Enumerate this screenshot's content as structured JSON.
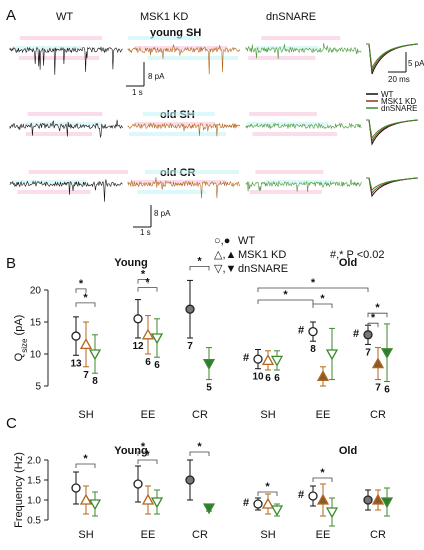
{
  "panels": [
    "A",
    "B",
    "C"
  ],
  "panel_a": {
    "col_headers": [
      "WT",
      "MSK1 KD",
      "dnSNARE"
    ],
    "row_labels": [
      "young SH",
      "old SH",
      "old CR"
    ],
    "scalebar_1": {
      "amp": "8 pA",
      "time": "1 s"
    },
    "scalebar_2": {
      "amp": "8 pA",
      "time": "1 s"
    },
    "avg_scale": {
      "amp": "5 pA",
      "time": "20 ms"
    },
    "avg_legend": [
      "WT",
      "MSK1 KD",
      "dnSNARE"
    ]
  },
  "legend": {
    "wt": "WT",
    "kd": "MSK1 KD",
    "dn": "dnSNARE",
    "pval": "#,* P <0.02",
    "wt_sym": "○,●",
    "kd_sym": "△,▲",
    "dn_sym": "▽,▼"
  },
  "colors": {
    "wt": "#111111",
    "kd": "#b5651d",
    "dn": "#3d8a2e",
    "kd_fill": "#8b5a2b",
    "dn_fill": "#2e7d32"
  },
  "chart_data": [
    {
      "type": "scatter",
      "panel": "B",
      "title": "Young",
      "ylabel": "Q",
      "ylabel_sub": "size",
      "ylabel_unit": " (pA)",
      "ylim": [
        5,
        20
      ],
      "yticks": [
        "5",
        "10",
        "15",
        "20"
      ],
      "categories": [
        "SH",
        "EE",
        "CR"
      ],
      "series": [
        {
          "name": "WT",
          "values": [
            12.8,
            15.5,
            17.0
          ],
          "err": [
            3,
            3,
            4.5
          ],
          "n": [
            "13",
            "12",
            "7"
          ]
        },
        {
          "name": "MSK1 KD",
          "values": [
            11.5,
            13.0,
            null
          ],
          "err": [
            3.5,
            3,
            null
          ],
          "n": [
            "7",
            "6",
            ""
          ]
        },
        {
          "name": "dnSNARE",
          "values": [
            10.0,
            12.5,
            8.5
          ],
          "err": [
            3,
            3,
            2.5
          ],
          "n": [
            "8",
            "6",
            "5"
          ]
        }
      ],
      "stars": [
        "*",
        "*",
        "*",
        "*",
        "*"
      ]
    },
    {
      "type": "scatter",
      "panel": "B",
      "title": "Old",
      "ylim": [
        5,
        20
      ],
      "categories": [
        "SH",
        "EE",
        "CR"
      ],
      "series": [
        {
          "name": "WT",
          "values": [
            9.2,
            13.5,
            13.0
          ],
          "err": [
            1.5,
            1.5,
            1.5
          ],
          "n": [
            "10",
            "8",
            "7"
          ]
        },
        {
          "name": "MSK1 KD",
          "values": [
            9.0,
            6.5,
            8.5
          ],
          "err": [
            1.5,
            1.5,
            2.5
          ],
          "n": [
            "6",
            "",
            "7"
          ]
        },
        {
          "name": "dnSNARE",
          "values": [
            9.0,
            10.0,
            10.2
          ],
          "err": [
            1.5,
            4,
            4.5
          ],
          "n": [
            "6",
            "",
            "6"
          ]
        }
      ],
      "hashes": [
        "#",
        "#",
        "#"
      ],
      "stars": [
        "*",
        "*",
        "*",
        "*",
        "*"
      ]
    },
    {
      "type": "scatter",
      "panel": "C",
      "title": "Young",
      "ylabel": "Frequency (Hz)",
      "ylim": [
        0.5,
        2.0
      ],
      "yticks": [
        "0.5",
        "1.0",
        "1.5",
        "2.0"
      ],
      "categories": [
        "SH",
        "EE",
        "CR"
      ],
      "series": [
        {
          "name": "WT",
          "values": [
            1.3,
            1.4,
            1.5
          ],
          "err": [
            0.4,
            0.45,
            0.5
          ]
        },
        {
          "name": "MSK1 KD",
          "values": [
            1.0,
            1.0,
            null
          ],
          "err": [
            0.35,
            0.35,
            null
          ]
        },
        {
          "name": "dnSNARE",
          "values": [
            0.9,
            0.95,
            0.8
          ],
          "err": [
            0.3,
            0.3,
            0.08
          ]
        }
      ],
      "stars": [
        "*",
        "*",
        "*",
        "*"
      ]
    },
    {
      "type": "scatter",
      "panel": "C",
      "title": "Old",
      "ylim": [
        0.5,
        2.0
      ],
      "categories": [
        "SH",
        "EE",
        "CR"
      ],
      "series": [
        {
          "name": "WT",
          "values": [
            0.9,
            1.1,
            1.0
          ],
          "err": [
            0.15,
            0.25,
            0.25
          ]
        },
        {
          "name": "MSK1 KD",
          "values": [
            0.9,
            1.0,
            1.0
          ],
          "err": [
            0.25,
            0.4,
            0.25
          ]
        },
        {
          "name": "dnSNARE",
          "values": [
            0.75,
            0.7,
            0.95
          ],
          "err": [
            0.15,
            0.35,
            0.35
          ]
        }
      ],
      "hashes": [
        "#",
        "#"
      ],
      "stars": [
        "*",
        "*"
      ]
    }
  ]
}
